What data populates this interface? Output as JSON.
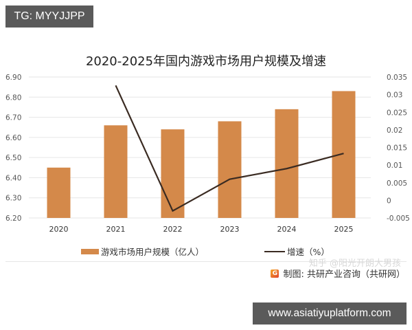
{
  "overlay": {
    "tag_label": "TG: MYYJJPP",
    "site_label": "www.asiatiyuplatform.com"
  },
  "legend": {
    "bar_label": "游戏市场用户规模（亿人）",
    "line_label": "增速（%）"
  },
  "source": {
    "logo_glyph": "G",
    "text": "制图: 共研产业咨询（共研网）",
    "watermark": "知乎 @阳光开朗大男孩"
  },
  "colors": {
    "bar": "#d4894a",
    "line": "#3a2b22",
    "grid": "#e6e6e6"
  },
  "chart_data": {
    "type": "bar",
    "title": "2020-2025年国内游戏市场用户规模及增速",
    "categories": [
      "2020",
      "2021",
      "2022",
      "2023",
      "2024",
      "2025"
    ],
    "series": [
      {
        "name": "游戏市场用户规模（亿人）",
        "type": "bar",
        "axis": "left",
        "values": [
          6.45,
          6.66,
          6.64,
          6.68,
          6.74,
          6.83
        ]
      },
      {
        "name": "增速（%）",
        "type": "line",
        "axis": "right",
        "values": [
          null,
          0.0326,
          -0.003,
          0.006,
          0.009,
          0.0133
        ]
      }
    ],
    "left_axis": {
      "ylim": [
        6.2,
        6.9
      ],
      "ticks": [
        "6.90",
        "6.80",
        "6.70",
        "6.60",
        "6.50",
        "6.40",
        "6.30",
        "6.20"
      ]
    },
    "right_axis": {
      "ylim": [
        -0.005,
        0.035
      ],
      "ticks": [
        "0.035",
        "0.03",
        "0.025",
        "0.02",
        "0.015",
        "0.01",
        "0.005",
        "0",
        "-0.005"
      ]
    },
    "grid": true,
    "legend_position": "bottom",
    "xlabel": "",
    "ylabel": ""
  }
}
